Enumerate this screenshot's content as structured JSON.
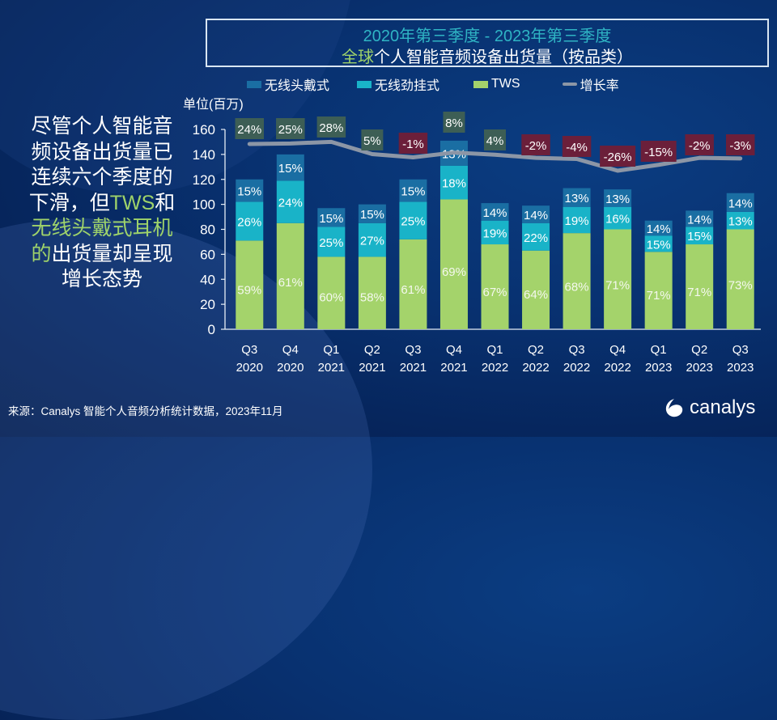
{
  "title": {
    "line1": "2020年第三季度 - 2023年第三季度",
    "line2_highlight": "全球",
    "line2_rest": "个人智能音频设备出货量（按品类）"
  },
  "legend": [
    {
      "label": "无线头戴式",
      "color": "#1a6ea3"
    },
    {
      "label": "无线劲挂式",
      "color": "#19b3c8"
    },
    {
      "label": "TWS",
      "color": "#a4d36b"
    },
    {
      "label": "增长率",
      "color": "#8c96a6"
    }
  ],
  "left_text": {
    "part1": "尽管个人智能音频设备出货量已连续六个季度的下滑，但",
    "tws": "TWS",
    "and": "和",
    "headphones": "无线头戴式耳机的",
    "part2": "出货量却呈现增长态势"
  },
  "source": "来源：Canalys 智能个人音频分析统计数据，2023年11月",
  "logo": "canalys",
  "chart_data": {
    "type": "bar",
    "stacked": true,
    "title": "2020年第三季度 - 2023年第三季度 全球个人智能音频设备出货量（按品类）",
    "ylabel": "单位(百万)",
    "xlabel": "",
    "ylim": [
      0,
      160
    ],
    "yticks": [
      0,
      20,
      40,
      60,
      80,
      100,
      120,
      140,
      160
    ],
    "legend_position": "top",
    "grid": false,
    "categories": [
      [
        "Q3",
        "2020"
      ],
      [
        "Q4",
        "2020"
      ],
      [
        "Q1",
        "2021"
      ],
      [
        "Q2",
        "2021"
      ],
      [
        "Q3",
        "2021"
      ],
      [
        "Q4",
        "2021"
      ],
      [
        "Q1",
        "2022"
      ],
      [
        "Q2",
        "2022"
      ],
      [
        "Q3",
        "2022"
      ],
      [
        "Q4",
        "2022"
      ],
      [
        "Q1",
        "2023"
      ],
      [
        "Q2",
        "2023"
      ],
      [
        "Q3",
        "2023"
      ]
    ],
    "series": [
      {
        "name": "TWS",
        "color": "#a4d36b",
        "values": [
          71,
          85,
          58,
          58,
          72,
          104,
          68,
          63,
          77,
          80,
          62,
          68,
          80
        ],
        "labels": [
          "59%",
          "61%",
          "60%",
          "58%",
          "61%",
          "69%",
          "67%",
          "64%",
          "68%",
          "71%",
          "71%",
          "71%",
          "73%"
        ]
      },
      {
        "name": "无线劲挂式",
        "color": "#19b3c8",
        "values": [
          31,
          34,
          24,
          27,
          30,
          27,
          19,
          22,
          21,
          18,
          13,
          14,
          14
        ],
        "labels": [
          "26%",
          "24%",
          "25%",
          "27%",
          "25%",
          "18%",
          "19%",
          "22%",
          "19%",
          "16%",
          "15%",
          "15%",
          "13%"
        ]
      },
      {
        "name": "无线头戴式",
        "color": "#1a6ea3",
        "values": [
          18,
          21,
          15,
          15,
          18,
          20,
          14,
          14,
          15,
          14,
          12,
          13,
          15
        ],
        "labels": [
          "15%",
          "15%",
          "15%",
          "15%",
          "15%",
          "13%",
          "14%",
          "14%",
          "13%",
          "13%",
          "14%",
          "14%",
          "14%"
        ]
      }
    ],
    "growth": {
      "name": "增长率",
      "type": "line",
      "color": "#8c96a6",
      "values": [
        24,
        25,
        28,
        5,
        -1,
        8,
        4,
        -2,
        -4,
        -26,
        -15,
        -2,
        -3
      ],
      "labels": [
        "24%",
        "25%",
        "28%",
        "5%",
        "-1%",
        "8%",
        "4%",
        "-2%",
        "-4%",
        "-26%",
        "-15%",
        "-2%",
        "-3%"
      ],
      "positive_color": "#3d5e55",
      "negative_color": "#6b1f3a"
    }
  }
}
